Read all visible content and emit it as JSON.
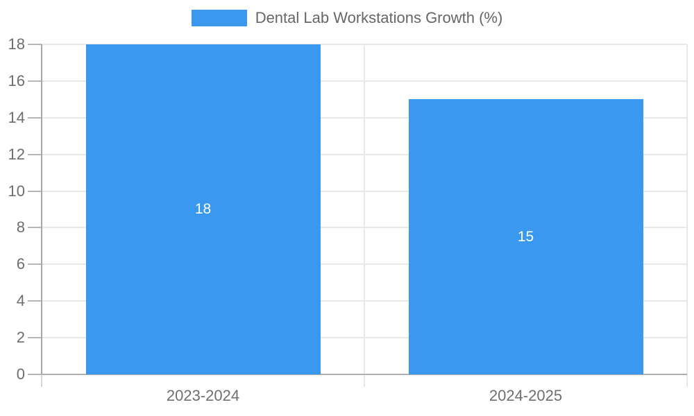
{
  "legend": {
    "label": "Dental Lab Workstations Growth (%)"
  },
  "colors": {
    "bar": "#3a99ee",
    "grid": "#e8e8e8",
    "axis_x": "#aeaeae",
    "axis_y": "#a6a6a6",
    "ytick": "#b5b5b5",
    "xtick": "#d6d6d6",
    "tick_text": "#6e6e6e",
    "legend_text": "#666666",
    "bar_label_text": "#ffffff"
  },
  "chart_data": {
    "type": "bar",
    "title": "",
    "series_label": "Dental Lab Workstations Growth (%)",
    "categories": [
      "2023-2024",
      "2024-2025"
    ],
    "values": [
      18,
      15
    ],
    "bar_labels": [
      "18",
      "15"
    ],
    "xlabel": "",
    "ylabel": "",
    "ylim": [
      0,
      18
    ],
    "ytick_step": 2,
    "ytick_labels": [
      "0",
      "2",
      "4",
      "6",
      "8",
      "10",
      "12",
      "14",
      "16",
      "18"
    ],
    "grid": true,
    "legend_position": "top"
  }
}
